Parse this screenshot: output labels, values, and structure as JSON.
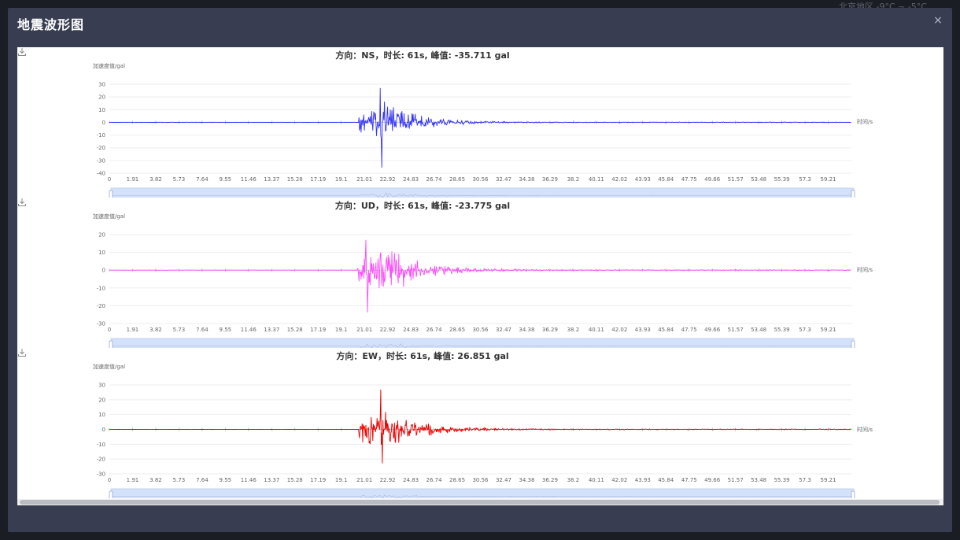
{
  "background": {
    "weather_text": "北京地区 -9°C ~ -5°C"
  },
  "modal": {
    "title": "地震波形图",
    "close_label": "×"
  },
  "chart_data": [
    {
      "type": "line",
      "title": "方向：NS，时长: 61s, 峰值: -35.711 gal",
      "ylabel": "加速度值/gal",
      "xlabel": "时间/s",
      "color": "#3333ff",
      "ylim": [
        -40,
        30
      ],
      "yticks": [
        30,
        20,
        10,
        0,
        -10,
        -20,
        -30,
        -40
      ],
      "xticks": [
        "0",
        "1.91",
        "3.82",
        "5.73",
        "7.64",
        "9.55",
        "11.46",
        "13.37",
        "15.28",
        "17.19",
        "19.1",
        "21.01",
        "22.92",
        "24.83",
        "26.74",
        "28.65",
        "30.56",
        "32.47",
        "34.38",
        "36.29",
        "38.2",
        "40.11",
        "42.02",
        "43.93",
        "45.84",
        "47.75",
        "49.66",
        "51.57",
        "53.48",
        "55.39",
        "57.3",
        "59.21"
      ],
      "duration_s": 61,
      "peak": -35.711,
      "peak_time_s": 22.4,
      "max_positive": 27,
      "onset_s": 20.5,
      "seed": 7
    },
    {
      "type": "line",
      "title": "方向：UD，时长: 61s, 峰值: -23.775 gal",
      "ylabel": "加速度值/gal",
      "xlabel": "时间/s",
      "color": "#ff4dff",
      "ylim": [
        -30,
        20
      ],
      "yticks": [
        20,
        10,
        0,
        -10,
        -20,
        -30
      ],
      "xticks": [
        "0",
        "1.91",
        "3.82",
        "5.73",
        "7.64",
        "9.55",
        "11.46",
        "13.37",
        "15.28",
        "17.19",
        "19.1",
        "21.01",
        "22.92",
        "24.83",
        "26.74",
        "28.65",
        "30.56",
        "32.47",
        "34.38",
        "36.29",
        "38.2",
        "40.11",
        "42.02",
        "43.93",
        "45.84",
        "47.75",
        "49.66",
        "51.57",
        "53.48",
        "55.39",
        "57.3",
        "59.21"
      ],
      "duration_s": 61,
      "peak": -23.775,
      "peak_time_s": 21.2,
      "max_positive": 17,
      "onset_s": 20.4,
      "seed": 19
    },
    {
      "type": "line",
      "title": "方向：EW，时长: 61s, 峰值: 26.851 gal",
      "ylabel": "加速度值/gal",
      "xlabel": "时间/s",
      "color": "#ee0000",
      "ylim": [
        -30,
        30
      ],
      "yticks": [
        30,
        20,
        10,
        0,
        -10,
        -20,
        -30
      ],
      "xticks": [
        "0",
        "1.91",
        "3.82",
        "5.73",
        "7.64",
        "9.55",
        "11.46",
        "13.37",
        "15.28",
        "17.19",
        "19.1",
        "21.01",
        "22.92",
        "24.83",
        "26.74",
        "28.65",
        "30.56",
        "32.47",
        "34.38",
        "36.29",
        "38.2",
        "40.11",
        "42.02",
        "43.93",
        "45.84",
        "47.75",
        "49.66",
        "51.57",
        "53.48",
        "55.39",
        "57.3",
        "59.21"
      ],
      "duration_s": 61,
      "peak": 26.851,
      "peak_time_s": 22.3,
      "max_negative": -23,
      "onset_s": 20.5,
      "seed": 31
    }
  ]
}
